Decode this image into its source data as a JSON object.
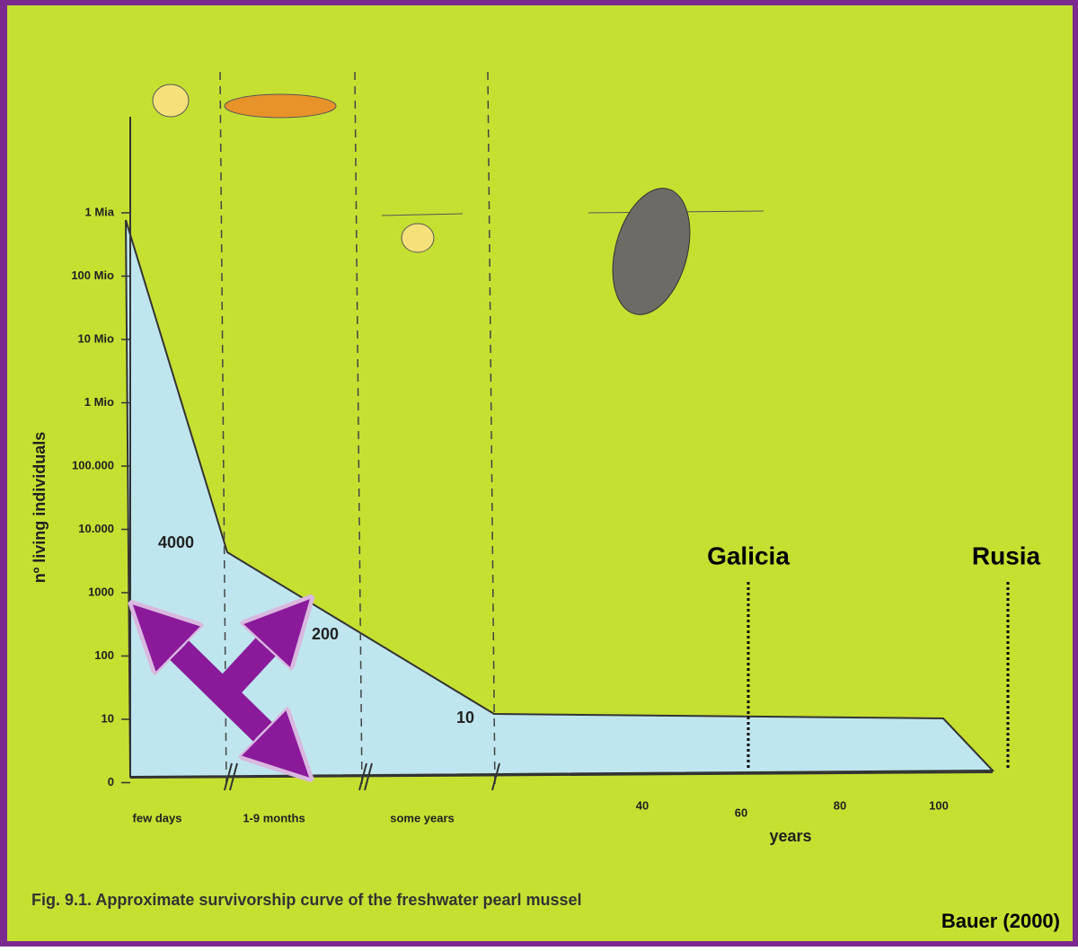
{
  "figure": {
    "y_axis_label": "nº living individuals",
    "y_ticks": [
      "1 Mia",
      "100 Mio",
      "10 Mio",
      "1 Mio",
      "100.000",
      "10.000",
      "1000",
      "100",
      "10",
      "0"
    ],
    "stage_labels": [
      "few days",
      "1-9 months",
      "some years"
    ],
    "year_ticks": [
      "40",
      "60",
      "80",
      "100"
    ],
    "x_axis_label": "years",
    "point_labels": [
      "4000",
      "200",
      "10"
    ],
    "caption": "Fig. 9.1. Approximate survivorship curve of the freshwater pearl mussel"
  },
  "annotations": {
    "markers": [
      "Galicia",
      "Rusia"
    ],
    "source": "Bauer (2000)"
  }
}
